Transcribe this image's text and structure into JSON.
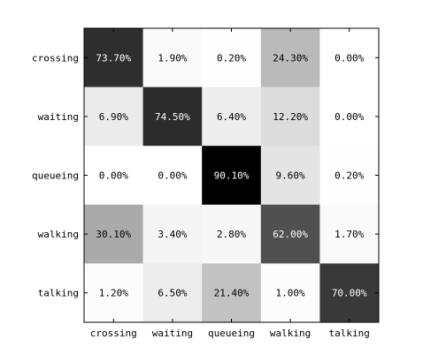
{
  "chart_data": {
    "type": "heatmap",
    "title": "",
    "xlabel": "",
    "ylabel": "",
    "rows": [
      "crossing",
      "waiting",
      "queueing",
      "walking",
      "talking"
    ],
    "columns": [
      "crossing",
      "waiting",
      "queueing",
      "walking",
      "talking"
    ],
    "values": [
      [
        73.7,
        1.9,
        0.2,
        24.3,
        0.0
      ],
      [
        6.9,
        74.5,
        6.4,
        12.2,
        0.0
      ],
      [
        0.0,
        0.0,
        90.1,
        9.6,
        0.2
      ],
      [
        30.1,
        3.4,
        2.8,
        62.0,
        1.7
      ],
      [
        1.2,
        6.5,
        21.4,
        1.0,
        70.0
      ]
    ],
    "labels": [
      [
        "73.70%",
        "1.90%",
        "0.20%",
        "24.30%",
        "0.00%"
      ],
      [
        "6.90%",
        "74.50%",
        "6.40%",
        "12.20%",
        "0.00%"
      ],
      [
        "0.00%",
        "0.00%",
        "90.10%",
        "9.60%",
        "0.20%"
      ],
      [
        "30.10%",
        "3.40%",
        "2.80%",
        "62.00%",
        "1.70%"
      ],
      [
        "1.20%",
        "6.50%",
        "21.40%",
        "1.00%",
        "70.00%"
      ]
    ],
    "colormap": "gray_reversed",
    "value_range": [
      0,
      90.1
    ],
    "grid": false,
    "legend": "none"
  }
}
